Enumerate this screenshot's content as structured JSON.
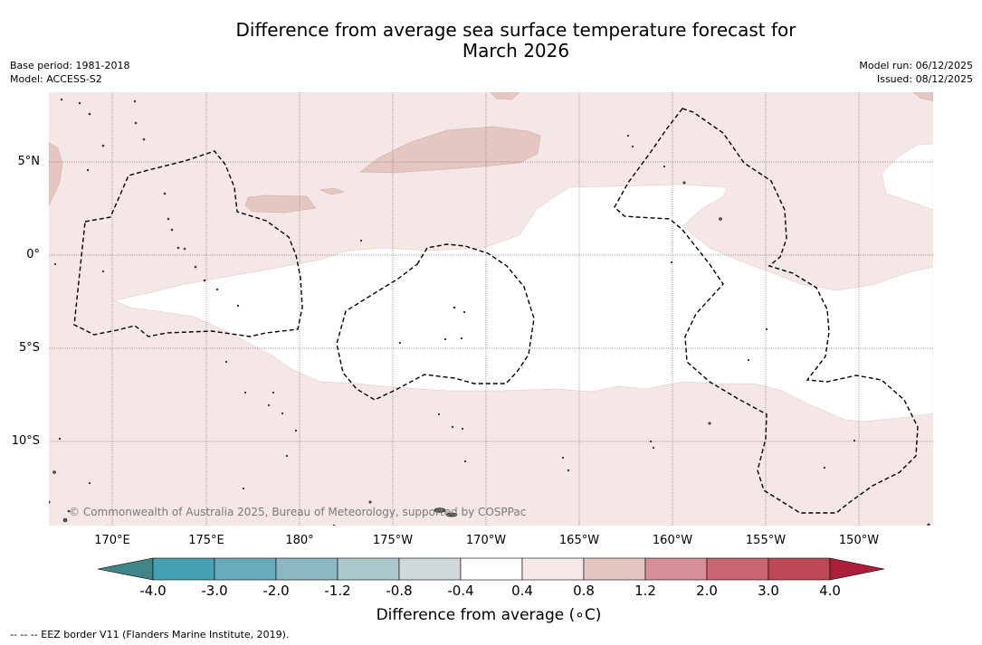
{
  "title": {
    "line1": "Difference from average sea surface temperature forecast for",
    "line2": "March 2026"
  },
  "meta_left": {
    "base_period": "Base period: 1981-2018",
    "model": "Model: ACCESS-S2"
  },
  "meta_right": {
    "model_run": "Model run: 06/12/2025",
    "issued": "Issued: 08/12/2025"
  },
  "map": {
    "lat_labels": [
      "5°N",
      "0°",
      "5°S",
      "10°S"
    ],
    "lon_labels": [
      "170°E",
      "175°E",
      "180°",
      "175°W",
      "170°W",
      "165°W",
      "160°W",
      "155°W",
      "150°W"
    ],
    "copyright": "© Commonwealth of Australia 2025, Bureau of Meteorology, supported by COSPPac",
    "colors": {
      "ocean_light": "#f4e7e5",
      "ocean_mid": "#e6c6c1",
      "neutral": "#ffffff",
      "land": "#444444"
    }
  },
  "colorbar": {
    "ticks": [
      "-4.0",
      "-3.0",
      "-2.0",
      "-1.2",
      "-0.8",
      "-0.4",
      "0.4",
      "0.8",
      "1.2",
      "2.0",
      "3.0",
      "4.0"
    ],
    "colors": [
      "#46a1b2",
      "#6aabbb",
      "#8db8c1",
      "#abc9cc",
      "#cfd9d9",
      "#ffffff",
      "#f5e8e6",
      "#e6c6c1",
      "#d68f97",
      "#c96570",
      "#bc4856"
    ],
    "under_color": "#3e8689",
    "over_color": "#ab1f3a",
    "label": "Difference from average (∘C)"
  },
  "legend": {
    "eez": "--  --  -- EEZ border V11 (Flanders Marine Institute, 2019)."
  }
}
